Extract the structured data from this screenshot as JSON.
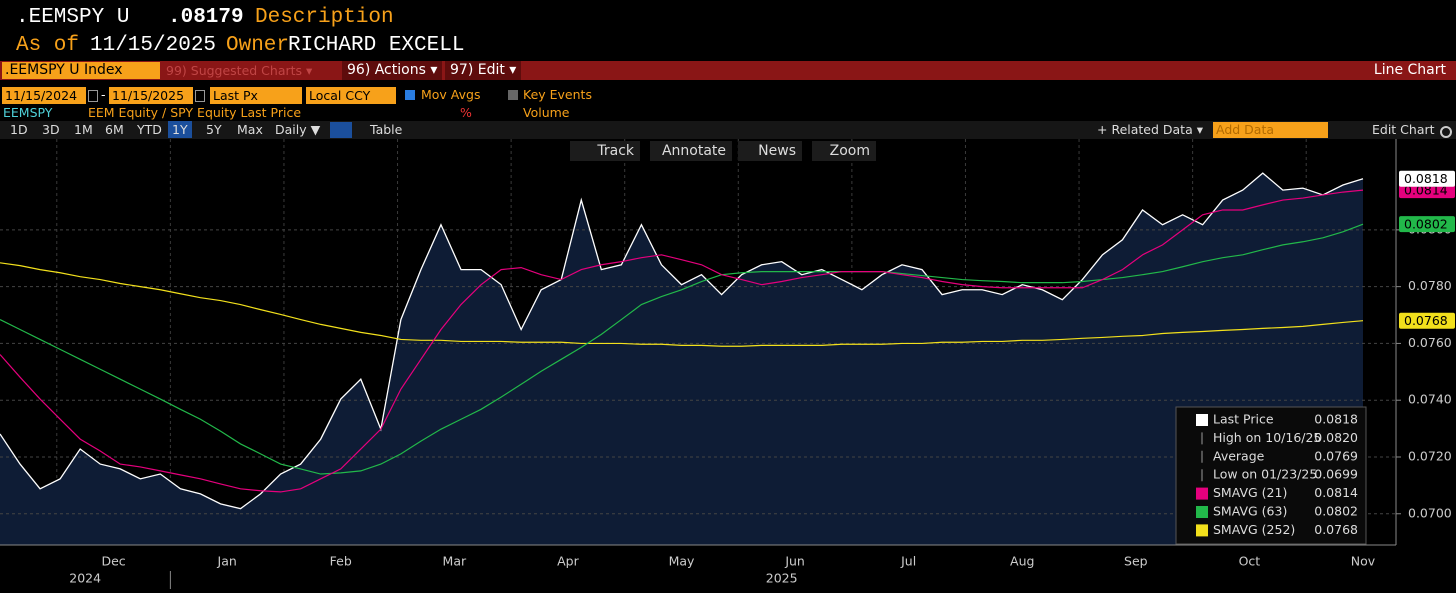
{
  "header": {
    "ticker": ".EEMSPY U",
    "price": ".08179",
    "description_label": "Description",
    "as_of_label": "As of",
    "as_of_date": "11/15/2025",
    "owner_label": "Owner",
    "owner": "RICHARD EXCELL"
  },
  "menu_bar": {
    "security": ".EEMSPY U Index",
    "suggested_charts": "99) Suggested Charts ▾",
    "actions": "96) Actions ▾",
    "edit": "97) Edit ▾",
    "chart_style": "Line Chart"
  },
  "settings": {
    "start_date": "11/15/2024",
    "separator": "-",
    "end_date": "11/15/2025",
    "field": "Last Px",
    "currency": "Local CCY",
    "mov_avgs": "Mov Avgs",
    "key_events": "Key Events"
  },
  "security_line": {
    "ticker": "EEMSPY",
    "description": "EEM Equity / SPY Equity Last Price",
    "percent": "%",
    "volume": "Volume"
  },
  "toolbar": {
    "periods": [
      "1D",
      "3D",
      "1M",
      "6M",
      "YTD",
      "1Y",
      "5Y",
      "Max"
    ],
    "selected_period": "1Y",
    "frequency": "Daily ▼",
    "table": "Table",
    "related_data": "+ Related Data ▾",
    "add_data": "Add Data",
    "edit_chart": "Edit Chart"
  },
  "chart_tools": [
    "Track",
    "Annotate",
    "News",
    "Zoom"
  ],
  "chart_data": {
    "type": "line",
    "x_labels": [
      "Dec",
      "Jan",
      "Feb",
      "Mar",
      "Apr",
      "May",
      "Jun",
      "Jul",
      "Aug",
      "Sep",
      "Oct",
      "Nov"
    ],
    "years": [
      "2024",
      "2025"
    ],
    "ylim": [
      0.0689,
      0.0832
    ],
    "yticks": [
      {
        "value": 0.07,
        "label": "0.0700"
      },
      {
        "value": 0.072,
        "label": "0.0720"
      },
      {
        "value": 0.074,
        "label": "0.0740"
      },
      {
        "value": 0.076,
        "label": "0.0760"
      },
      {
        "value": 0.078,
        "label": "0.0780"
      },
      {
        "value": 0.08,
        "label": "0.0800"
      }
    ],
    "grid": true,
    "legend_position": "lower right",
    "series": [
      {
        "name": "Last Price",
        "color": "#ffffff",
        "fill": "#0e1c35",
        "last_label": "0.0818",
        "values": [
          0.07281,
          0.07175,
          0.07088,
          0.07123,
          0.07228,
          0.07175,
          0.07158,
          0.07123,
          0.0714,
          0.07088,
          0.0707,
          0.07035,
          0.07018,
          0.0707,
          0.0714,
          0.07175,
          0.07263,
          0.07404,
          0.07474,
          0.07298,
          0.07684,
          0.0786,
          0.08018,
          0.0786,
          0.0786,
          0.07807,
          0.07649,
          0.07789,
          0.07825,
          0.08105,
          0.0786,
          0.07877,
          0.08018,
          0.07877,
          0.07807,
          0.07842,
          0.07772,
          0.07842,
          0.07877,
          0.07888,
          0.07842,
          0.0786,
          0.07825,
          0.07789,
          0.07842,
          0.07877,
          0.0786,
          0.07772,
          0.07789,
          0.07789,
          0.07772,
          0.07807,
          0.07789,
          0.07754,
          0.07825,
          0.07912,
          0.07965,
          0.0807,
          0.08018,
          0.08053,
          0.08018,
          0.08105,
          0.0814,
          0.082,
          0.0814,
          0.08147,
          0.08123,
          0.08158,
          0.0818
        ]
      },
      {
        "name": "SMAVG (21)",
        "color": "#e5007d",
        "last_label": "0.0814",
        "values": [
          0.07561,
          0.07481,
          0.07404,
          0.07333,
          0.07263,
          0.07221,
          0.07175,
          0.07165,
          0.07151,
          0.07137,
          0.07123,
          0.07105,
          0.07088,
          0.07081,
          0.07077,
          0.07088,
          0.07123,
          0.07158,
          0.07228,
          0.07298,
          0.07439,
          0.07544,
          0.07649,
          0.07737,
          0.07807,
          0.0786,
          0.07867,
          0.07842,
          0.07825,
          0.0786,
          0.07877,
          0.07888,
          0.07902,
          0.07912,
          0.07895,
          0.07877,
          0.07842,
          0.07825,
          0.07807,
          0.07818,
          0.07832,
          0.07842,
          0.07853,
          0.07853,
          0.07853,
          0.07842,
          0.07832,
          0.07818,
          0.07807,
          0.078,
          0.07796,
          0.07796,
          0.07796,
          0.07796,
          0.07796,
          0.07825,
          0.0786,
          0.07912,
          0.07947,
          0.08,
          0.08053,
          0.0807,
          0.0807,
          0.08088,
          0.08105,
          0.08112,
          0.08123,
          0.08133,
          0.0814
        ]
      },
      {
        "name": "SMAVG (63)",
        "color": "#22b84a",
        "last_label": "0.0802",
        "values": [
          0.07684,
          0.07649,
          0.07614,
          0.07579,
          0.07544,
          0.07509,
          0.07474,
          0.07439,
          0.07404,
          0.07368,
          0.07333,
          0.07291,
          0.07246,
          0.07211,
          0.07175,
          0.07158,
          0.0714,
          0.07144,
          0.07151,
          0.07175,
          0.07211,
          0.07256,
          0.07298,
          0.07333,
          0.07368,
          0.07411,
          0.07456,
          0.07502,
          0.07544,
          0.07586,
          0.07632,
          0.07684,
          0.07737,
          0.07765,
          0.07789,
          0.07818,
          0.07842,
          0.07849,
          0.07853,
          0.07853,
          0.07853,
          0.07853,
          0.07853,
          0.07853,
          0.07853,
          0.07846,
          0.07839,
          0.07832,
          0.07825,
          0.07821,
          0.07818,
          0.07814,
          0.07814,
          0.07814,
          0.07818,
          0.07825,
          0.07832,
          0.07842,
          0.07853,
          0.0787,
          0.07888,
          0.07902,
          0.07912,
          0.0793,
          0.07947,
          0.07958,
          0.07972,
          0.07993,
          0.0802
        ]
      },
      {
        "name": "SMAVG (252)",
        "color": "#f2e01c",
        "last_label": "0.0768",
        "values": [
          0.07884,
          0.07874,
          0.0786,
          0.07849,
          0.07835,
          0.07825,
          0.07811,
          0.078,
          0.07789,
          0.07775,
          0.07761,
          0.07751,
          0.07737,
          0.07719,
          0.07702,
          0.07684,
          0.07667,
          0.07653,
          0.07639,
          0.07628,
          0.07614,
          0.07611,
          0.07611,
          0.07607,
          0.07607,
          0.07607,
          0.07604,
          0.07604,
          0.07604,
          0.076,
          0.076,
          0.076,
          0.07597,
          0.07597,
          0.07593,
          0.07593,
          0.0759,
          0.0759,
          0.07593,
          0.07593,
          0.07593,
          0.07593,
          0.07597,
          0.07597,
          0.07597,
          0.076,
          0.076,
          0.07604,
          0.07604,
          0.07607,
          0.07607,
          0.07611,
          0.07611,
          0.07614,
          0.07618,
          0.07621,
          0.07625,
          0.07628,
          0.07635,
          0.07639,
          0.07642,
          0.07646,
          0.07649,
          0.07653,
          0.07656,
          0.0766,
          0.07667,
          0.07674,
          0.0768
        ]
      }
    ],
    "stats": [
      {
        "label": "High on 10/16/25",
        "value": "0.0820"
      },
      {
        "label": "Average",
        "value": "0.0769"
      },
      {
        "label": "Low on 01/23/25",
        "value": "0.0699"
      }
    ]
  }
}
